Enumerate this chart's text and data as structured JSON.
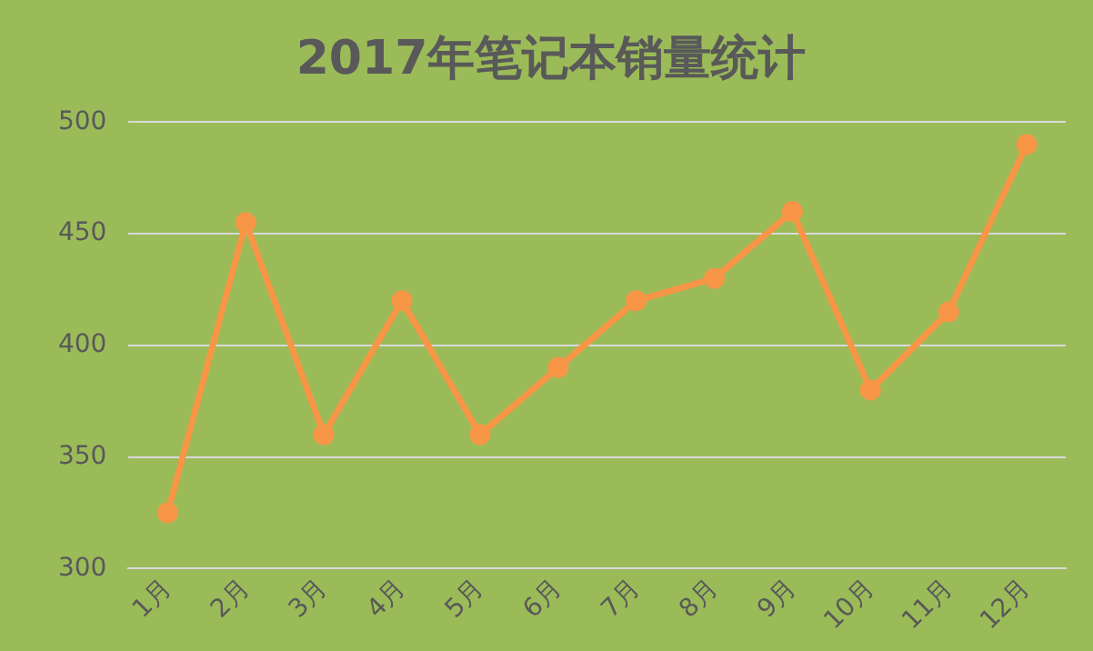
{
  "chart_data": {
    "type": "line",
    "title": "2017年笔记本销量统计",
    "categories": [
      "1月",
      "2月",
      "3月",
      "4月",
      "5月",
      "6月",
      "7月",
      "8月",
      "9月",
      "10月",
      "11月",
      "12月"
    ],
    "series": [
      {
        "color": "#f79646",
        "values": [
          325,
          455,
          360,
          420,
          360,
          390,
          420,
          430,
          460,
          380,
          415,
          490
        ]
      }
    ],
    "ylim": [
      300,
      500
    ],
    "yticks": [
      300,
      350,
      400,
      450,
      500
    ],
    "grid": "y",
    "legend": false,
    "marker": "circle",
    "line_style": "solid"
  }
}
